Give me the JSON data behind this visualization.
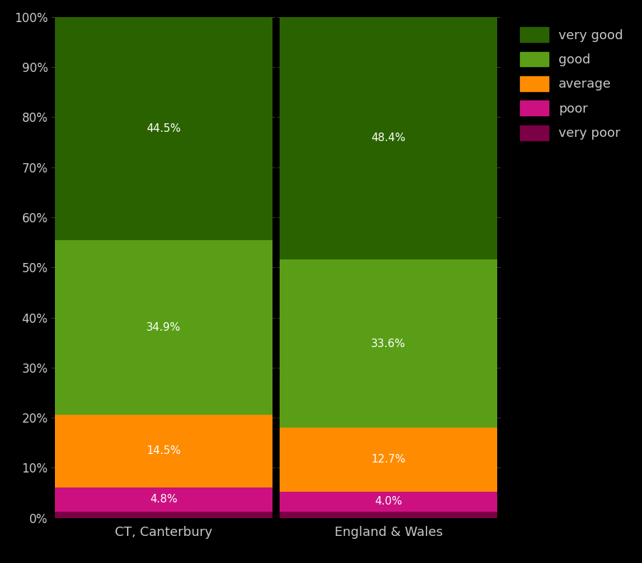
{
  "categories": [
    "CT, Canterbury",
    "England & Wales"
  ],
  "series": [
    {
      "label": "very poor",
      "color": "#7B0045",
      "values": [
        1.3,
        1.3
      ]
    },
    {
      "label": "poor",
      "color": "#CC1080",
      "values": [
        4.8,
        4.0
      ]
    },
    {
      "label": "average",
      "color": "#FF8C00",
      "values": [
        14.5,
        12.7
      ]
    },
    {
      "label": "good",
      "color": "#5A9E18",
      "values": [
        34.9,
        33.6
      ]
    },
    {
      "label": "very good",
      "color": "#2B6200",
      "values": [
        44.5,
        48.4
      ]
    }
  ],
  "bar_labels": [
    [
      "",
      "4.8%",
      "14.5%",
      "34.9%",
      "44.5%"
    ],
    [
      "",
      "4.0%",
      "12.7%",
      "33.6%",
      "48.4%"
    ]
  ],
  "background_color": "#000000",
  "text_color": "#C8C8C8",
  "ylim": [
    0,
    100
  ],
  "ylabel_ticks": [
    "0%",
    "10%",
    "20%",
    "30%",
    "40%",
    "50%",
    "60%",
    "70%",
    "80%",
    "90%",
    "100%"
  ]
}
